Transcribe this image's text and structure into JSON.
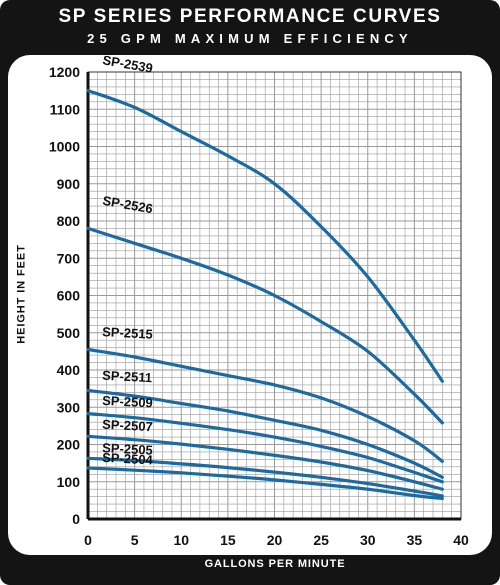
{
  "header": {
    "title": "SP SERIES PERFORMANCE CURVES",
    "subtitle": "25 GPM MAXIMUM EFFICIENCY"
  },
  "colors": {
    "frame": "#141414",
    "panel": "#ffffff",
    "grid": "#9a9a9a",
    "curve": "#1b6aa0",
    "text": "#111111"
  },
  "chart_data": {
    "type": "line",
    "title": "SP SERIES PERFORMANCE CURVES",
    "subtitle": "25 GPM MAXIMUM EFFICIENCY",
    "xlabel": "GALLONS PER MINUTE",
    "ylabel": "HEIGHT IN FEET",
    "xlim": [
      0,
      40
    ],
    "ylim": [
      0,
      1200
    ],
    "xticks": [
      0,
      5,
      10,
      15,
      20,
      25,
      30,
      35,
      40
    ],
    "yticks": [
      0,
      100,
      200,
      300,
      400,
      500,
      600,
      700,
      800,
      900,
      1000,
      1100,
      1200
    ],
    "grid": true,
    "series": [
      {
        "name": "SP-2539",
        "x": [
          0,
          5,
          10,
          15,
          20,
          25,
          30,
          35,
          38
        ],
        "y": [
          1150,
          1105,
          1040,
          975,
          900,
          785,
          650,
          480,
          370
        ]
      },
      {
        "name": "SP-2526",
        "x": [
          0,
          5,
          10,
          15,
          20,
          25,
          30,
          35,
          38
        ],
        "y": [
          780,
          740,
          700,
          655,
          600,
          530,
          450,
          335,
          258
        ]
      },
      {
        "name": "SP-2515",
        "x": [
          0,
          5,
          10,
          15,
          20,
          25,
          30,
          35,
          38
        ],
        "y": [
          455,
          435,
          410,
          385,
          360,
          325,
          275,
          210,
          155
        ]
      },
      {
        "name": "SP-2511",
        "x": [
          0,
          5,
          10,
          15,
          20,
          25,
          30,
          35,
          38
        ],
        "y": [
          345,
          330,
          310,
          290,
          265,
          238,
          200,
          150,
          112
        ]
      },
      {
        "name": "SP-2509",
        "x": [
          0,
          5,
          10,
          15,
          20,
          25,
          30,
          35,
          38
        ],
        "y": [
          283,
          272,
          257,
          240,
          220,
          195,
          165,
          125,
          100
        ]
      },
      {
        "name": "SP-2507",
        "x": [
          0,
          5,
          10,
          15,
          20,
          25,
          30,
          35,
          38
        ],
        "y": [
          222,
          213,
          201,
          187,
          171,
          153,
          130,
          100,
          80
        ]
      },
      {
        "name": "SP-2505",
        "x": [
          0,
          5,
          10,
          15,
          20,
          25,
          30,
          35,
          38
        ],
        "y": [
          163,
          157,
          148,
          138,
          126,
          112,
          95,
          75,
          62
        ]
      },
      {
        "name": "SP-2504",
        "x": [
          0,
          5,
          10,
          15,
          20,
          25,
          30,
          35,
          38
        ],
        "y": [
          137,
          131,
          124,
          115,
          105,
          93,
          80,
          63,
          55
        ]
      }
    ]
  }
}
